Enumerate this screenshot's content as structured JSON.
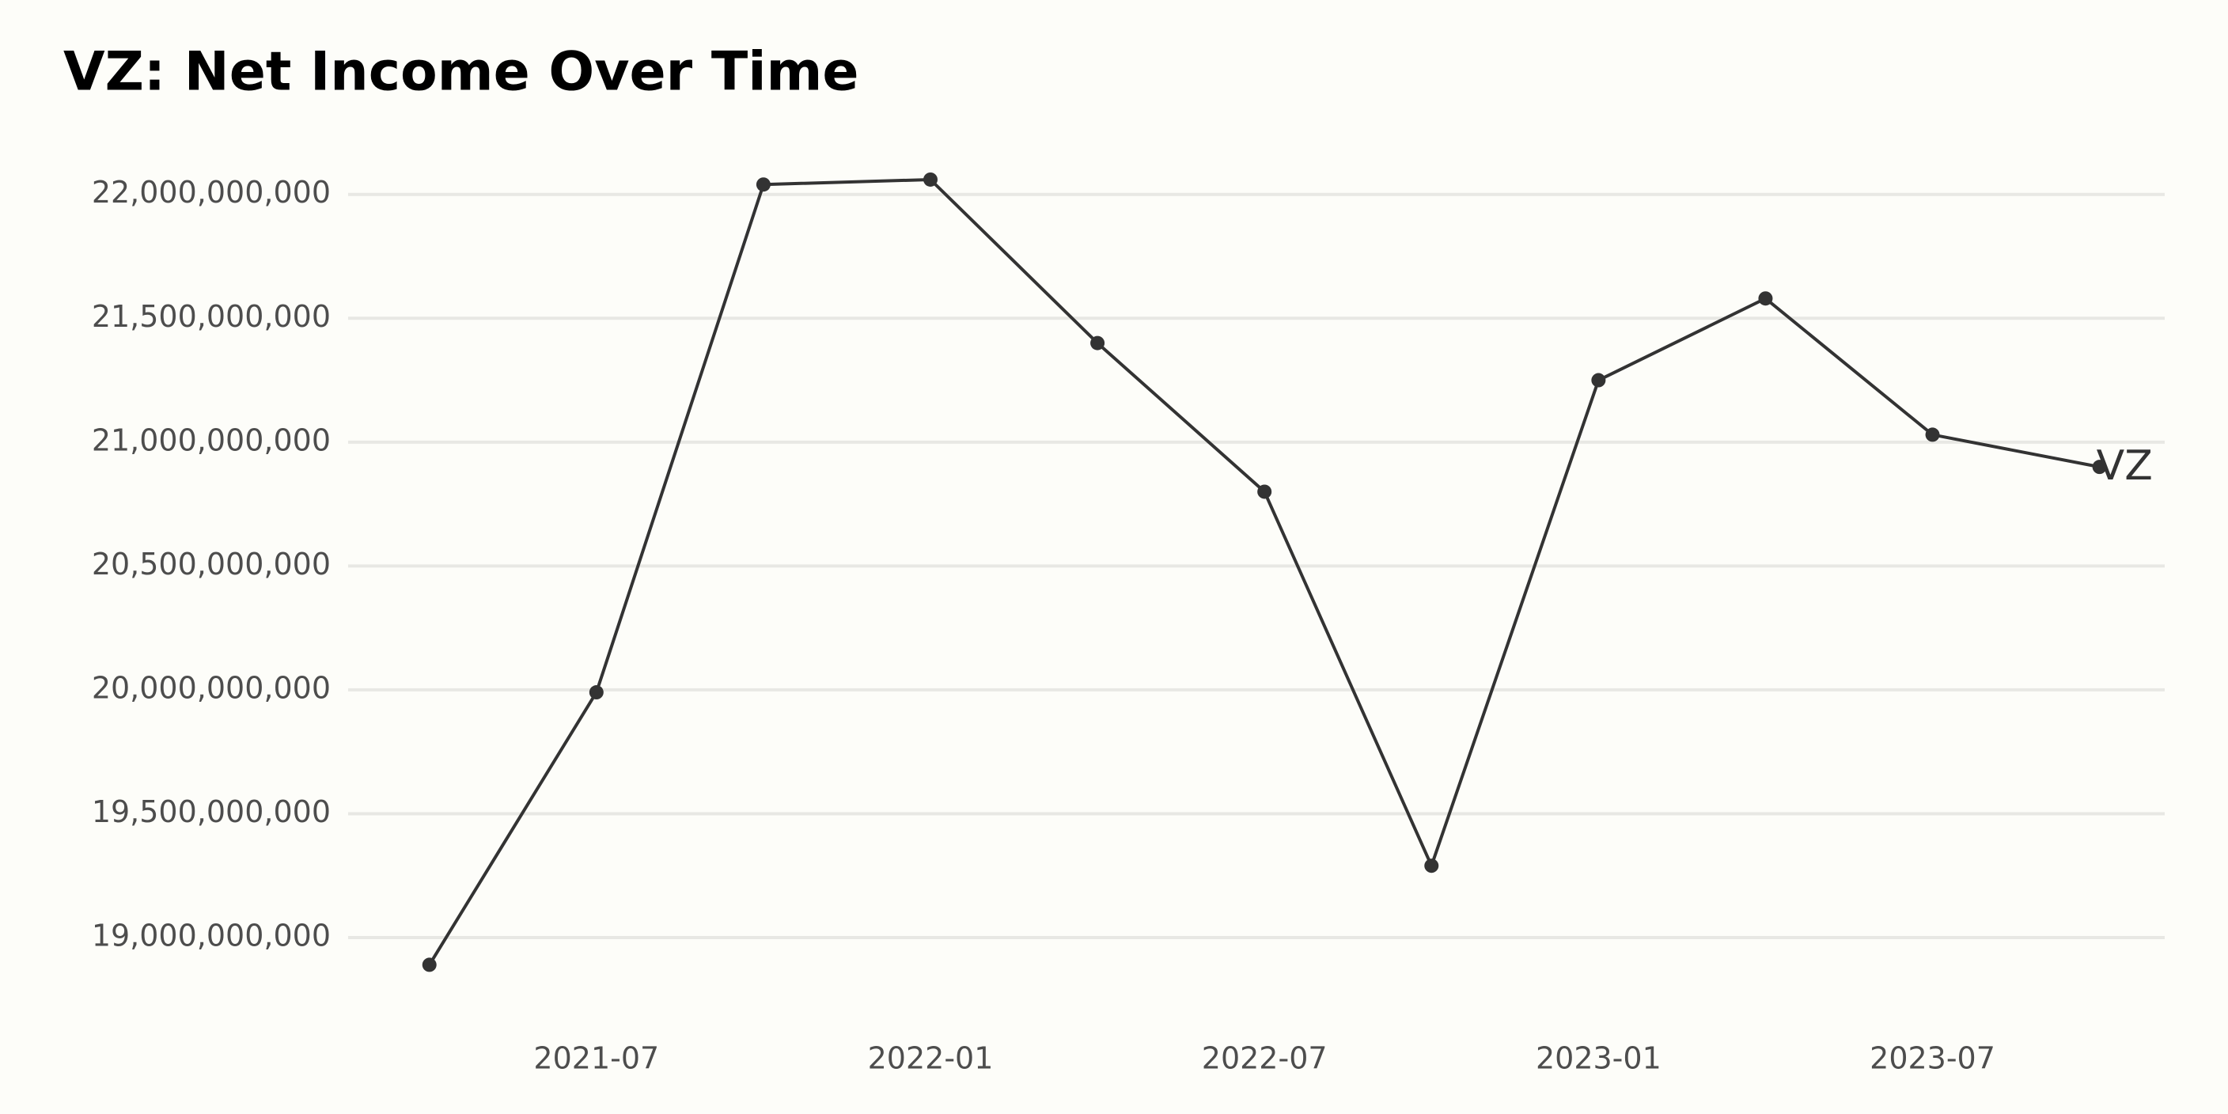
{
  "chart_data": {
    "type": "line",
    "title": "VZ: Net Income Over Time",
    "x": [
      "2021-04",
      "2021-07",
      "2021-10",
      "2022-01",
      "2022-04",
      "2022-07",
      "2022-10",
      "2023-01",
      "2023-04",
      "2023-07",
      "2023-10"
    ],
    "series": [
      {
        "name": "VZ",
        "color": "#333333",
        "values": [
          18890000000,
          19990000000,
          22040000000,
          22060000000,
          21400000000,
          20800000000,
          19290000000,
          21250000000,
          21580000000,
          21030000000,
          20900000000
        ]
      }
    ],
    "xlim": [
      "2021-02",
      "2023-11"
    ],
    "xticks": [
      "2021-07",
      "2022-01",
      "2022-07",
      "2023-01",
      "2023-07"
    ],
    "ylim": [
      18770000000,
      22210000000
    ],
    "yticks": [
      {
        "value": 19000000000,
        "label": "19,000,000,000"
      },
      {
        "value": 19500000000,
        "label": "19,500,000,000"
      },
      {
        "value": 20000000000,
        "label": "20,000,000,000"
      },
      {
        "value": 20500000000,
        "label": "20,500,000,000"
      },
      {
        "value": 21000000000,
        "label": "21,000,000,000"
      },
      {
        "value": 21500000000,
        "label": "21,500,000,000"
      },
      {
        "value": 22000000000,
        "label": "22,000,000,000"
      }
    ],
    "grid": true
  }
}
